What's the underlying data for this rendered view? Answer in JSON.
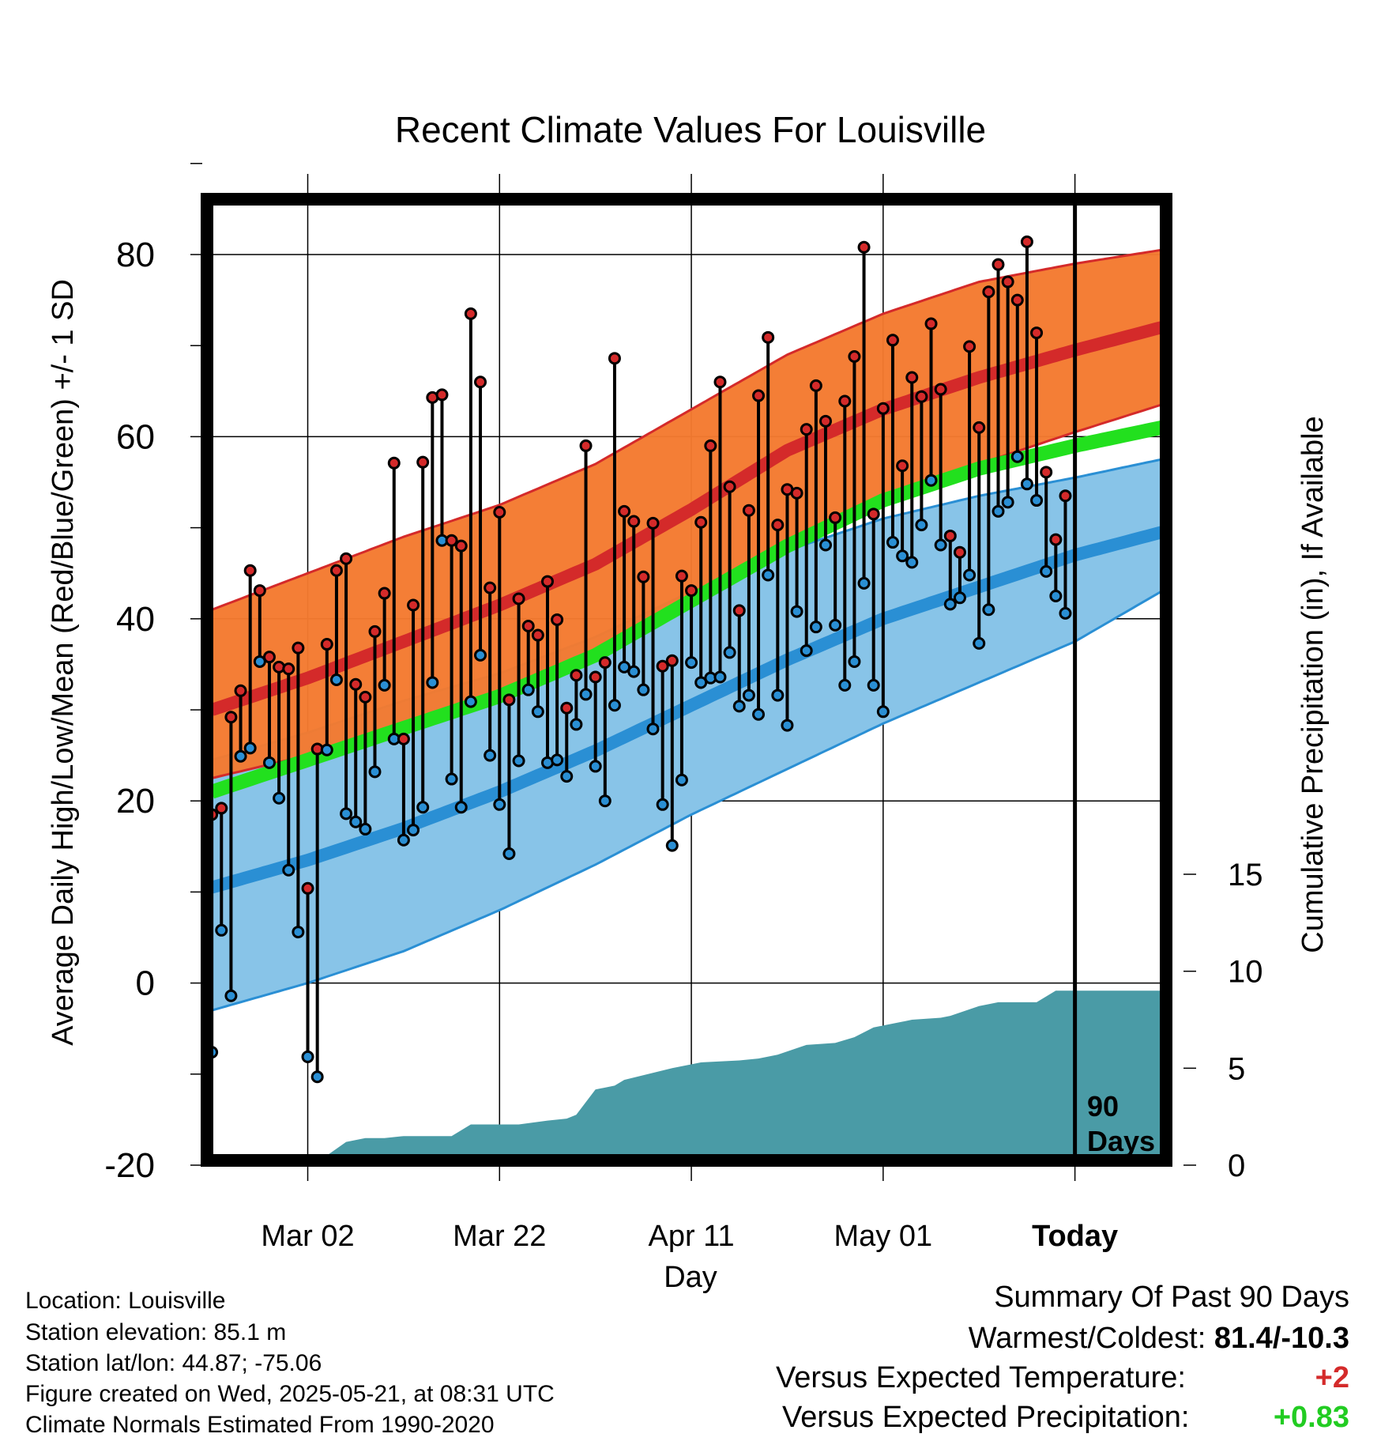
{
  "chart_data": {
    "type": "line",
    "title": "Recent Climate Values For Louisville",
    "xlabel": "Day",
    "ylabel_left": "Average Daily High/Low/Mean (Red/Blue/Green) +/- 1 SD",
    "ylabel_right": "Cumulative Precipitation (in), If Available",
    "y_left_ticks": [
      "80",
      "60",
      "40",
      "20",
      "0",
      "-20"
    ],
    "y_right_ticks": [
      "15",
      "10",
      "5",
      "0"
    ],
    "ylim_left": [
      -20,
      80
    ],
    "ylim_right": [
      0,
      20
    ],
    "x_ticks": [
      "Mar 02",
      "Mar 22",
      "Apr 11",
      "May 01",
      "Today"
    ],
    "x_tick_days": [
      10,
      30,
      50,
      70,
      90
    ],
    "xlim_days": [
      -1,
      100
    ],
    "today_marker": {
      "label_line1": "90",
      "label_line2": "Days",
      "day": 90
    },
    "grid": true,
    "normals": {
      "days": [
        0,
        10,
        20,
        30,
        40,
        50,
        60,
        70,
        80,
        90,
        99
      ],
      "high_mean": [
        30,
        33.5,
        37.5,
        41.5,
        46,
        52,
        58.5,
        63,
        66.5,
        69.5,
        72
      ],
      "high_sd_upper": [
        41,
        45,
        49,
        52.5,
        57,
        63,
        69,
        73.5,
        77,
        79,
        80.5
      ],
      "high_sd_lower": [
        22.5,
        25,
        28,
        32,
        36,
        42,
        48,
        53,
        57,
        60.5,
        63.5
      ],
      "mean_mean": [
        21,
        24.5,
        28,
        31.5,
        36,
        42,
        48,
        53,
        56.5,
        59,
        61
      ],
      "low_mean": [
        10.5,
        13.5,
        17,
        21,
        25.5,
        30.5,
        35.5,
        40,
        43.5,
        47,
        49.5
      ],
      "low_sd_upper": [
        24.5,
        27.5,
        31,
        34,
        38,
        43,
        47.5,
        51,
        53.5,
        55.5,
        57.5
      ],
      "low_sd_lower": [
        -3,
        0,
        3.5,
        8,
        13,
        18.5,
        23.5,
        28.5,
        33,
        37.5,
        43
      ]
    },
    "series": [
      {
        "name": "High",
        "color": "#d42a2a",
        "values": [
          18.5,
          19.2,
          29.2,
          32.1,
          45.3,
          43.1,
          35.8,
          34.7,
          34.5,
          36.8,
          10.4,
          25.7,
          37.2,
          45.3,
          46.6,
          32.8,
          31.4,
          38.6,
          42.8,
          57.1,
          26.8,
          41.5,
          57.2,
          64.3,
          64.6,
          48.6,
          48,
          73.5,
          66,
          43.4,
          51.7,
          31.1,
          42.2,
          39.2,
          38.2,
          44.1,
          39.9,
          30.2,
          33.8,
          59,
          33.6,
          35.2,
          68.6,
          51.8,
          50.7,
          44.6,
          50.5,
          34.8,
          35.4,
          44.7,
          43.1,
          50.6,
          59,
          66,
          54.5,
          40.9,
          51.9,
          64.5,
          70.9,
          50.3,
          54.2,
          53.8,
          60.8,
          65.6,
          61.7,
          51.1,
          63.9,
          68.8,
          80.8,
          51.5,
          63.1,
          70.6,
          56.8,
          66.5,
          64.4,
          72.4,
          65.2,
          49.1,
          47.3,
          69.9,
          61,
          75.9,
          78.9,
          77,
          75,
          81.4,
          71.4,
          56.1,
          48.7,
          53.5
        ]
      },
      {
        "name": "Low",
        "color": "#2a8fd4",
        "values": [
          -7.6,
          5.8,
          -1.4,
          24.9,
          25.8,
          35.3,
          24.2,
          20.3,
          12.4,
          5.6,
          -8.1,
          -10.3,
          25.6,
          33.3,
          18.6,
          17.7,
          16.9,
          23.2,
          32.7,
          26.8,
          15.7,
          16.8,
          19.3,
          33,
          48.6,
          22.4,
          19.3,
          30.9,
          36,
          25,
          19.6,
          14.2,
          24.4,
          32.2,
          29.8,
          24.2,
          24.5,
          22.7,
          28.4,
          31.7,
          23.8,
          20,
          30.5,
          34.7,
          34.2,
          32.2,
          27.9,
          19.6,
          15.1,
          22.3,
          35.2,
          33,
          33.5,
          33.6,
          36.3,
          30.4,
          31.6,
          29.5,
          44.8,
          31.6,
          28.3,
          40.8,
          36.5,
          39.1,
          48.1,
          39.3,
          32.7,
          35.3,
          43.9,
          32.7,
          29.8,
          48.4,
          46.9,
          46.2,
          50.3,
          55.2,
          48.1,
          41.6,
          42.3,
          44.8,
          37.3,
          41,
          51.8,
          52.8,
          57.8,
          54.8,
          53,
          45.2,
          42.5,
          40.6
        ]
      },
      {
        "name": "Cumulative Precipitation",
        "color": "#4a9ba6",
        "days": [
          0,
          7,
          9,
          12,
          14,
          16,
          18,
          20,
          25,
          27,
          32,
          35,
          37,
          38,
          40,
          42,
          43,
          48,
          51,
          55,
          57,
          59,
          62,
          65,
          67,
          69,
          72,
          73,
          76,
          77,
          80,
          82,
          86,
          88,
          90,
          100
        ],
        "values": [
          0,
          0,
          0.4,
          0.5,
          1.2,
          1.4,
          1.4,
          1.5,
          1.5,
          2.1,
          2.1,
          2.3,
          2.4,
          2.6,
          3.9,
          4.1,
          4.4,
          5.0,
          5.3,
          5.4,
          5.5,
          5.7,
          6.2,
          6.3,
          6.6,
          7.1,
          7.4,
          7.5,
          7.6,
          7.7,
          8.2,
          8.4,
          8.4,
          9.0,
          9.0,
          9.0
        ]
      }
    ]
  },
  "info": {
    "location": "Location: Louisville",
    "elevation": "Station elevation: 85.1 m",
    "latlon": "Station lat/lon: 44.87; -75.06",
    "created": "Figure created on Wed, 2025-05-21, at 08:31 UTC",
    "normals": "Climate Normals Estimated From 1990-2020"
  },
  "summary": {
    "heading": "Summary Of Past 90 Days",
    "warmest_label": "Warmest/Coldest: ",
    "warmest_value": "81.4/-10.3",
    "temp_label": "Versus Expected Temperature:",
    "temp_value": "+2",
    "temp_color": "#d42a2a",
    "precip_label": "Versus Expected Precipitation:",
    "precip_value": "+0.83",
    "precip_color": "#22cc22"
  }
}
